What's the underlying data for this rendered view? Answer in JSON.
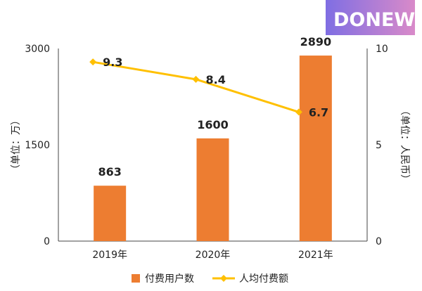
{
  "logo": {
    "text": "DONEWS",
    "gradient_from": "#7f6ee3",
    "gradient_to": "#d98ac9"
  },
  "colors": {
    "bar": "#ed7d31",
    "line": "#ffc000",
    "axis": "#444444"
  },
  "chart_data": {
    "type": "bar",
    "categories": [
      "2019年",
      "2020年",
      "2021年"
    ],
    "series": [
      {
        "name": "付费用户数",
        "type": "bar",
        "axis": "left",
        "values": [
          863,
          1600,
          2890
        ],
        "color": "#ed7d31"
      },
      {
        "name": "人均付费额",
        "type": "line",
        "axis": "right",
        "values": [
          9.3,
          8.4,
          6.7
        ],
        "color": "#ffc000"
      }
    ],
    "ylabel": "（单位：万）",
    "y2label": "（单位：人民币）",
    "ylim": [
      0,
      3000
    ],
    "y2lim": [
      0,
      10
    ],
    "yticks": [
      "0",
      "1500",
      "3000"
    ],
    "y2ticks": [
      "0",
      "5",
      "10"
    ],
    "grid": false,
    "legend_position": "bottom"
  }
}
